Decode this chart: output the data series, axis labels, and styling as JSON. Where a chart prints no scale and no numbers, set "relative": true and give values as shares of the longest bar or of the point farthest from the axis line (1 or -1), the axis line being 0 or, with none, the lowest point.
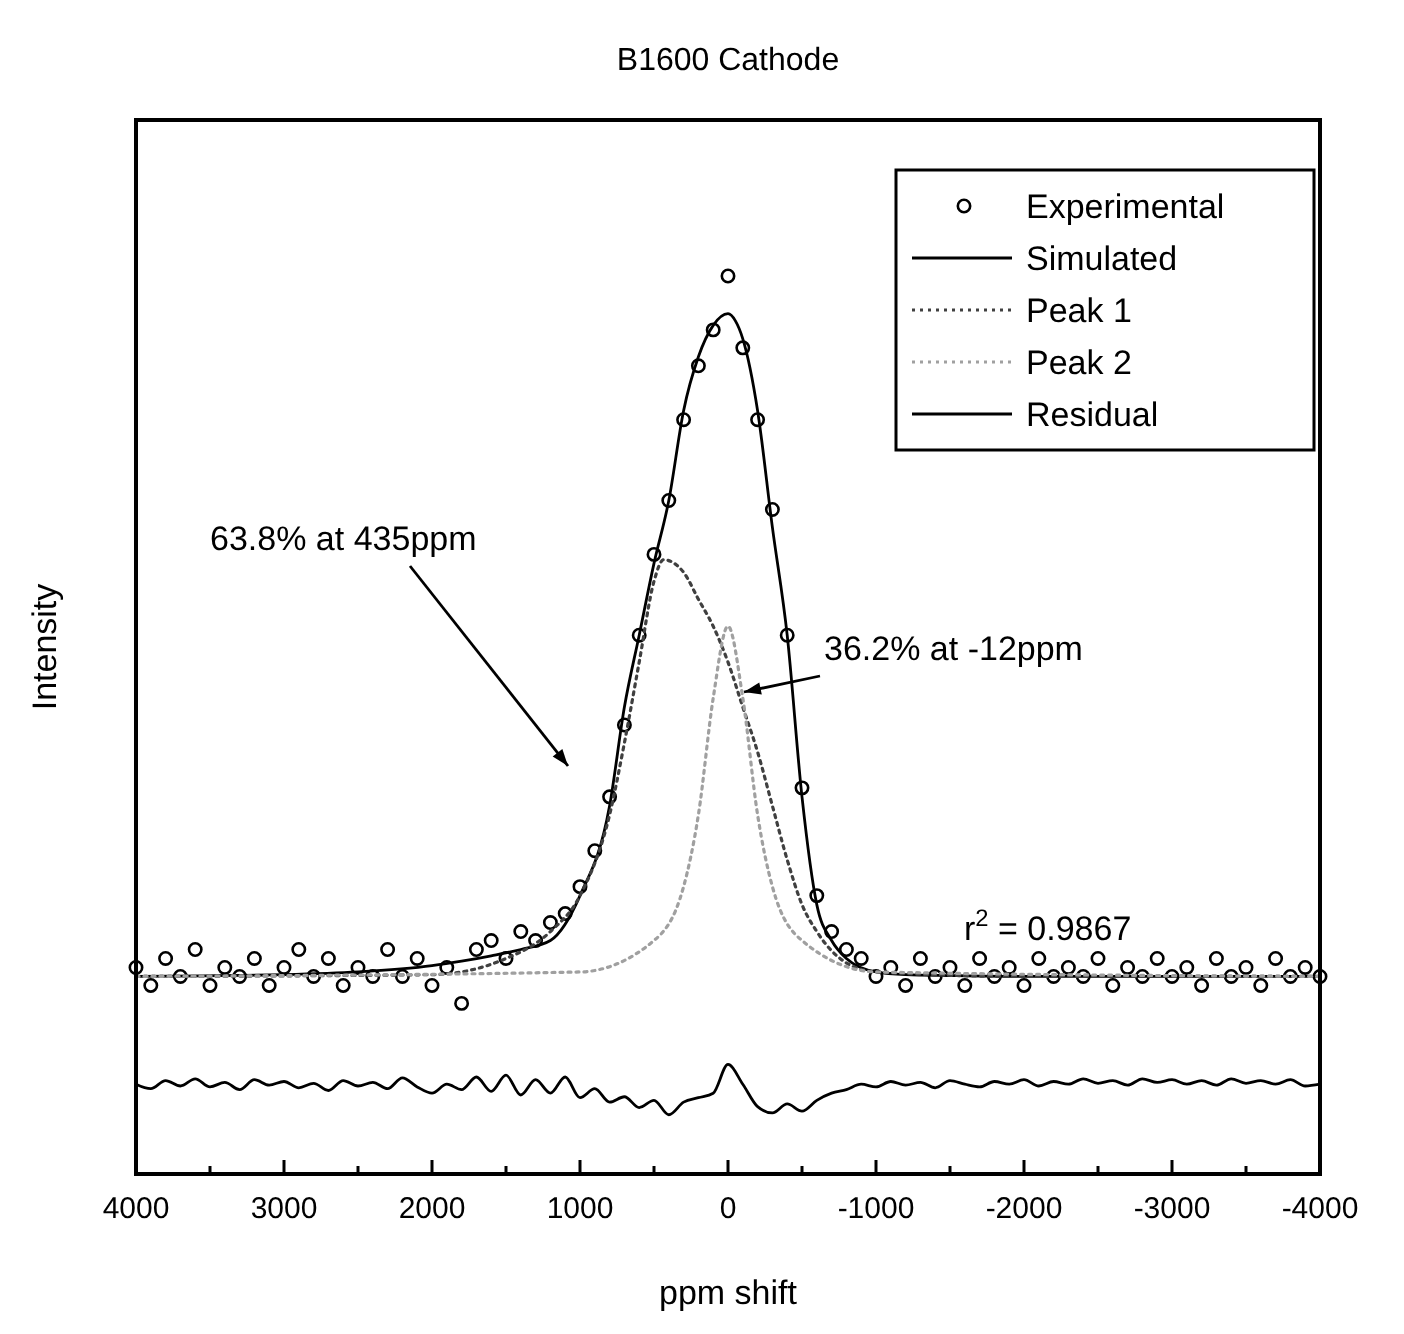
{
  "chart_data": {
    "type": "line",
    "title": "B1600 Cathode",
    "xlabel": "ppm shift",
    "ylabel": "Intensity",
    "relative": true,
    "xlim": [
      4000,
      -4000
    ],
    "xticks": [
      4000,
      {
        "value": 3500,
        "label": null
      },
      3000,
      {
        "value": 2500,
        "label": null
      },
      2000,
      {
        "value": 1500,
        "label": null
      },
      1000,
      {
        "value": 500,
        "label": null
      },
      0,
      {
        "value": -500,
        "label": null
      },
      -1000,
      {
        "value": -1500,
        "label": null
      },
      -2000,
      {
        "value": -2500,
        "label": null
      },
      -3000,
      {
        "value": -3500,
        "label": null
      },
      -4000
    ],
    "legend": "top right",
    "series": [
      {
        "name": "Experimental",
        "type": "scatter",
        "marker": "circle",
        "color": "#000000",
        "x": [
          4000,
          3900,
          3800,
          3700,
          3600,
          3500,
          3400,
          3300,
          3200,
          3100,
          3000,
          2900,
          2800,
          2700,
          2600,
          2500,
          2400,
          2300,
          2200,
          2100,
          2000,
          1900,
          1800,
          1700,
          1600,
          1500,
          1400,
          1300,
          1200,
          1100,
          1000,
          900,
          800,
          700,
          600,
          500,
          400,
          300,
          200,
          100,
          0,
          -100,
          -200,
          -300,
          -400,
          -500,
          -600,
          -700,
          -800,
          -900,
          -1000,
          -1100,
          -1200,
          -1300,
          -1400,
          -1500,
          -1600,
          -1700,
          -1800,
          -1900,
          -2000,
          -2100,
          -2200,
          -2300,
          -2400,
          -2500,
          -2600,
          -2700,
          -2800,
          -2900,
          -3000,
          -3100,
          -3200,
          -3300,
          -3400,
          -3500,
          -3600,
          -3700,
          -3800,
          -3900,
          -4000
        ],
        "values": [
          0.23,
          0.21,
          0.24,
          0.22,
          0.25,
          0.21,
          0.23,
          0.22,
          0.24,
          0.21,
          0.23,
          0.25,
          0.22,
          0.24,
          0.21,
          0.23,
          0.22,
          0.25,
          0.22,
          0.24,
          0.21,
          0.23,
          0.19,
          0.25,
          0.26,
          0.24,
          0.27,
          0.26,
          0.28,
          0.29,
          0.32,
          0.36,
          0.42,
          0.5,
          0.6,
          0.69,
          0.75,
          0.84,
          0.9,
          0.94,
          1.0,
          0.92,
          0.84,
          0.74,
          0.6,
          0.43,
          0.31,
          0.27,
          0.25,
          0.24,
          0.22,
          0.23,
          0.21,
          0.24,
          0.22,
          0.23,
          0.21,
          0.24,
          0.22,
          0.23,
          0.21,
          0.24,
          0.22,
          0.23,
          0.22,
          0.24,
          0.21,
          0.23,
          0.22,
          0.24,
          0.22,
          0.23,
          0.21,
          0.24,
          0.22,
          0.23,
          0.21,
          0.24,
          0.22,
          0.23,
          0.22
        ]
      },
      {
        "name": "Simulated",
        "line_style": "solid",
        "color": "#000000",
        "x": [
          4000,
          3000,
          2500,
          2000,
          1800,
          1600,
          1400,
          1200,
          1000,
          800,
          700,
          600,
          500,
          400,
          300,
          200,
          100,
          0,
          -50,
          -100,
          -200,
          -300,
          -400,
          -500,
          -600,
          -700,
          -800,
          -1000,
          -1200,
          -1500,
          -2000,
          -3000,
          -4000
        ],
        "values": [
          0.22,
          0.222,
          0.225,
          0.232,
          0.237,
          0.243,
          0.25,
          0.26,
          0.31,
          0.41,
          0.52,
          0.6,
          0.68,
          0.75,
          0.85,
          0.91,
          0.945,
          0.958,
          0.95,
          0.93,
          0.85,
          0.72,
          0.6,
          0.42,
          0.3,
          0.26,
          0.24,
          0.225,
          0.222,
          0.221,
          0.22,
          0.22,
          0.22
        ]
      },
      {
        "name": "Peak 1",
        "line_style": "dotted",
        "color": "#404040",
        "x": [
          4000,
          2000,
          1500,
          1200,
          1000,
          800,
          700,
          600,
          500,
          435,
          300,
          200,
          100,
          0,
          -100,
          -200,
          -300,
          -400,
          -500,
          -600,
          -800,
          -1000,
          -2000,
          -4000
        ],
        "values": [
          0.22,
          0.222,
          0.24,
          0.27,
          0.31,
          0.4,
          0.48,
          0.57,
          0.66,
          0.684,
          0.67,
          0.64,
          0.61,
          0.57,
          0.52,
          0.47,
          0.41,
          0.35,
          0.3,
          0.27,
          0.235,
          0.225,
          0.22,
          0.22
        ]
      },
      {
        "name": "Peak 2",
        "line_style": "dotted",
        "color": "#a0a0a0",
        "x": [
          4000,
          1000,
          500,
          300,
          200,
          100,
          0,
          -100,
          -200,
          -300,
          -500,
          -1000,
          -4000
        ],
        "values": [
          0.22,
          0.225,
          0.26,
          0.32,
          0.4,
          0.53,
          0.61,
          0.53,
          0.4,
          0.32,
          0.26,
          0.225,
          0.22
        ]
      },
      {
        "name": "Residual",
        "line_style": "solid",
        "color": "#000000",
        "x": [
          4000,
          3900,
          3800,
          3700,
          3600,
          3500,
          3400,
          3300,
          3200,
          3100,
          3000,
          2900,
          2800,
          2700,
          2600,
          2500,
          2400,
          2300,
          2200,
          2100,
          2000,
          1900,
          1800,
          1700,
          1600,
          1500,
          1400,
          1300,
          1200,
          1100,
          1000,
          900,
          800,
          700,
          600,
          500,
          400,
          300,
          200,
          100,
          0,
          -100,
          -200,
          -300,
          -400,
          -500,
          -600,
          -700,
          -800,
          -900,
          -1000,
          -1100,
          -1200,
          -1300,
          -1400,
          -1500,
          -1600,
          -1700,
          -1800,
          -1900,
          -2000,
          -2100,
          -2200,
          -2300,
          -2400,
          -2500,
          -2600,
          -2700,
          -2800,
          -2900,
          -3000,
          -3100,
          -3200,
          -3300,
          -3400,
          -3500,
          -3600,
          -3700,
          -3800,
          -3900,
          -4000
        ],
        "values": [
          0.1,
          0.095,
          0.104,
          0.098,
          0.106,
          0.097,
          0.102,
          0.094,
          0.105,
          0.099,
          0.103,
          0.096,
          0.101,
          0.093,
          0.104,
          0.098,
          0.102,
          0.095,
          0.107,
          0.097,
          0.09,
          0.1,
          0.094,
          0.108,
          0.092,
          0.11,
          0.088,
          0.105,
          0.09,
          0.108,
          0.085,
          0.095,
          0.08,
          0.086,
          0.074,
          0.082,
          0.066,
          0.08,
          0.085,
          0.09,
          0.122,
          0.1,
          0.075,
          0.068,
          0.078,
          0.07,
          0.082,
          0.09,
          0.094,
          0.1,
          0.097,
          0.103,
          0.099,
          0.102,
          0.096,
          0.104,
          0.1,
          0.097,
          0.103,
          0.1,
          0.105,
          0.098,
          0.103,
          0.1,
          0.106,
          0.101,
          0.104,
          0.099,
          0.106,
          0.102,
          0.105,
          0.1,
          0.104,
          0.099,
          0.106,
          0.101,
          0.104,
          0.1,
          0.105,
          0.098,
          0.1
        ]
      }
    ],
    "annotations": [
      "63.8% at 435ppm",
      "36.2% at -12ppm",
      "r$^{2}$ = 0.9867"
    ]
  }
}
